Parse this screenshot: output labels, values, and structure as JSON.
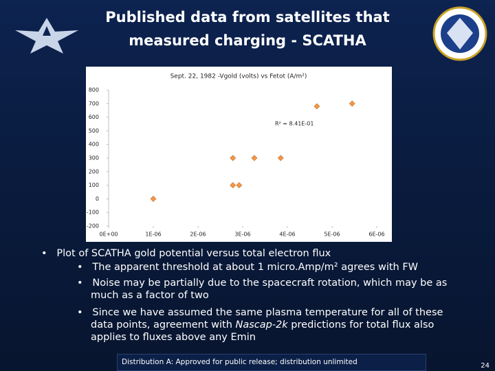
{
  "slide": {
    "title_lines": [
      "Published data from satellites that",
      "measured charging - SCATHA"
    ],
    "bullet": "Plot of SCATHA gold potential versus total electron flux",
    "sub_bullets": [
      [
        "The apparent threshold at about 1 micro.Amp/m² agrees with FW"
      ],
      [
        "Noise may be partially due to the spacecraft rotation, which may be as much as a factor of two"
      ],
      [
        "Since we have assumed the same plasma temperature for all of these data points, agreement with ",
        "Nascap-2k",
        " predictions for total flux also applies to fluxes above any Emin"
      ]
    ],
    "footer": "Distribution A: Approved for public release; distribution unlimited",
    "page_number": "24"
  },
  "chart_data": {
    "type": "scatter",
    "title": "Sept. 22, 1982 -Vgold (volts) vs Fetot (A/m²)",
    "annotation": "R² = 8.41E-01",
    "x": [
      1e-06,
      2.78e-06,
      2.92e-06,
      2.78e-06,
      3.26e-06,
      3.85e-06,
      4.66e-06,
      5.45e-06
    ],
    "values": [
      0,
      100,
      100,
      300,
      300,
      300,
      680,
      700
    ],
    "color": "#f79646",
    "xlim": [
      0,
      6e-06
    ],
    "ylim": [
      -200,
      800
    ],
    "xticks": [
      {
        "value": 0,
        "label": "0E+00"
      },
      {
        "value": 1e-06,
        "label": "1E-06"
      },
      {
        "value": 2e-06,
        "label": "2E-06"
      },
      {
        "value": 3e-06,
        "label": "3E-06"
      },
      {
        "value": 4e-06,
        "label": "4E-06"
      },
      {
        "value": 5e-06,
        "label": "5E-06"
      },
      {
        "value": 6e-06,
        "label": "6E-06"
      }
    ],
    "yticks": [
      -200,
      -100,
      0,
      100,
      200,
      300,
      400,
      500,
      600,
      700,
      800
    ]
  }
}
